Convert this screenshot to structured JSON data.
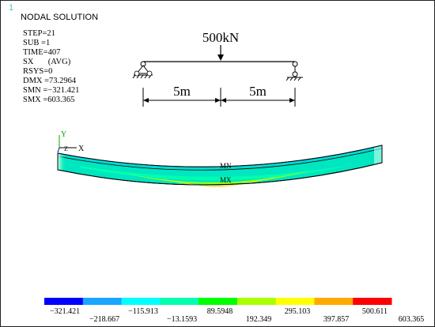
{
  "viewport_number": "1",
  "title": "NODAL SOLUTION",
  "solution_info": [
    "STEP=21",
    "SUB =1",
    "TIME=407",
    "SX       (AVG)",
    "RSYS=0",
    "DMX =73.2964",
    "SMN =−321.421",
    "SMX =603.365"
  ],
  "load_diagram": {
    "load_label": "500kN",
    "span_left": "5m",
    "span_right": "5m"
  },
  "model": {
    "axis_y": "Y",
    "axis_x": "X",
    "axis_z": "Z",
    "min_marker": "MN",
    "max_marker": "MX"
  },
  "legend": {
    "colors": [
      "#0000ff",
      "#1aa6ff",
      "#00ffff",
      "#00ffb0",
      "#00ff00",
      "#aaff00",
      "#ffff00",
      "#ffaa00",
      "#ff0000"
    ],
    "labels_lower": [
      "−321.421",
      "−13.1593",
      "295.103",
      "603.365"
    ],
    "labels_upper": [
      "−218.667",
      "89.5948",
      "397.857"
    ],
    "labels_lower_mid": [
      "−115.913",
      "192.349",
      "500.611"
    ]
  }
}
